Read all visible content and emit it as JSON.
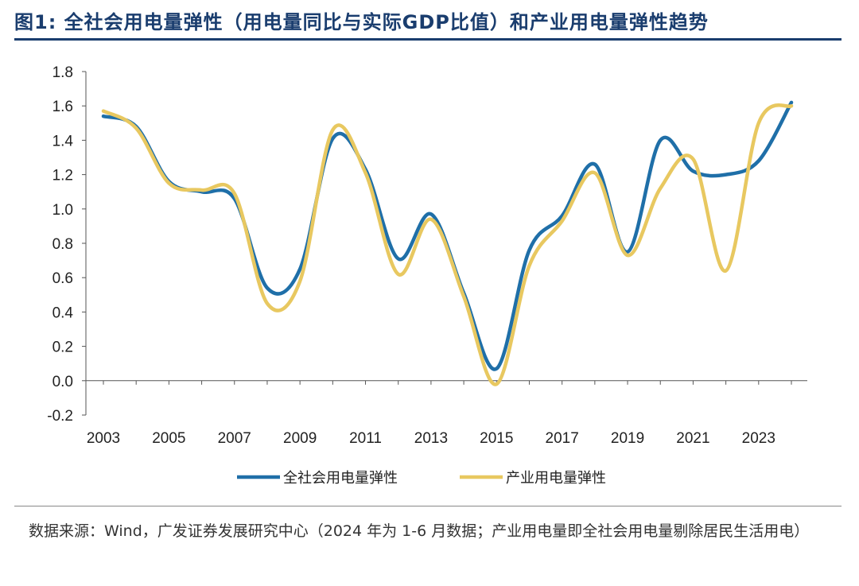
{
  "title": "图1:  全社会用电量弹性（用电量同比与实际GDP比值）和产业用电量弹性趋势",
  "source": "数据来源：Wind，广发证券发展研究中心（2024 年为 1-6 月数据；产业用电量即全社会用电量剔除居民生活用电）",
  "colors": {
    "series1": "#1f6fa8",
    "series2": "#e8c860",
    "title": "#1a3d6e"
  },
  "chart_data": {
    "type": "line",
    "title": "",
    "xlabel": "",
    "ylabel": "",
    "x": [
      2003,
      2004,
      2005,
      2006,
      2007,
      2008,
      2009,
      2010,
      2011,
      2012,
      2013,
      2014,
      2015,
      2016,
      2017,
      2018,
      2019,
      2020,
      2021,
      2022,
      2023,
      2024
    ],
    "xticks": [
      "2003",
      "2005",
      "2007",
      "2009",
      "2011",
      "2013",
      "2015",
      "2017",
      "2019",
      "2021",
      "2023"
    ],
    "yticks": [
      "1.8",
      "1.6",
      "1.4",
      "1.2",
      "1.0",
      "0.8",
      "0.6",
      "0.4",
      "0.2",
      "0.0",
      "-0.2"
    ],
    "ylim": [
      -0.2,
      1.8
    ],
    "grid": false,
    "legend": "bottom",
    "series": [
      {
        "name": "全社会用电量弹性",
        "values": [
          1.54,
          1.48,
          1.16,
          1.1,
          1.06,
          0.54,
          0.65,
          1.41,
          1.23,
          0.71,
          0.97,
          0.51,
          0.07,
          0.76,
          0.96,
          1.26,
          0.75,
          1.4,
          1.22,
          1.2,
          1.28,
          1.62
        ]
      },
      {
        "name": "产业用电量弹性",
        "values": [
          1.57,
          1.47,
          1.15,
          1.11,
          1.09,
          0.45,
          0.58,
          1.46,
          1.21,
          0.62,
          0.94,
          0.49,
          -0.02,
          0.67,
          0.93,
          1.21,
          0.73,
          1.12,
          1.29,
          0.64,
          1.5,
          1.6
        ]
      }
    ]
  }
}
